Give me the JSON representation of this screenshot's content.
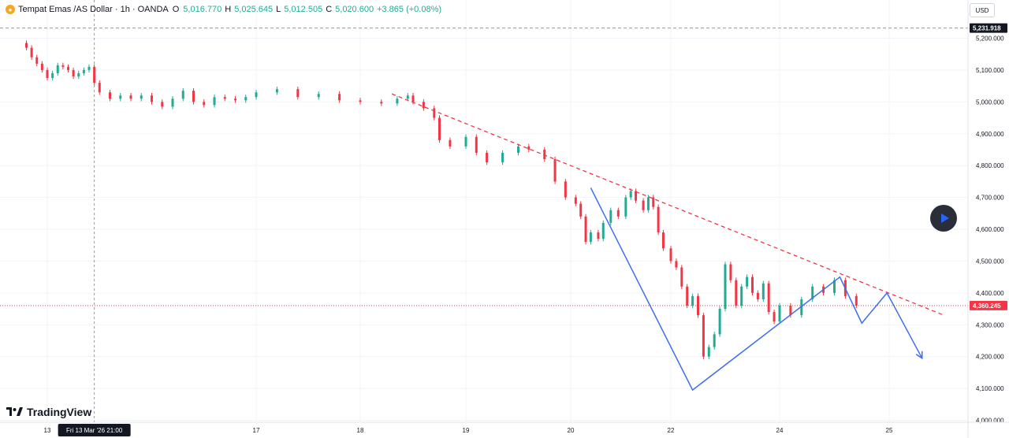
{
  "legend": {
    "symbol": "Tempat Emas /AS Dollar · 1h · OANDA",
    "o_label": "O",
    "o_value": "5,016.770",
    "h_label": "H",
    "h_value": "5,025.645",
    "l_label": "L",
    "l_value": "5,012.505",
    "c_label": "C",
    "c_value": "5,020.600",
    "change": "+3.865 (+0.08%)"
  },
  "currency": "USD",
  "logo_text": "TradingView",
  "colors": {
    "up": "#22ab94",
    "down": "#f23645",
    "projection": "#3d6ef2",
    "trendline": "#f23645"
  },
  "chart_data": {
    "type": "candlestick",
    "y_axis": {
      "min": 4000,
      "max": 5231.918,
      "ticks": [
        "5,200.000",
        "5,100.000",
        "5,000.000",
        "4,900.000",
        "4,800.000",
        "4,700.000",
        "4,600.000",
        "4,500.000",
        "4,400.000",
        "4,300.000",
        "4,200.000",
        "4,100.000",
        "4,000.000"
      ],
      "tick_values": [
        5200,
        5100,
        5000,
        4900,
        4800,
        4700,
        4600,
        4500,
        4400,
        4300,
        4200,
        4100,
        4000
      ]
    },
    "x_axis": {
      "ticks": [
        "13",
        "17",
        "18",
        "19",
        "20",
        "22",
        "24",
        "25"
      ],
      "tick_days": [
        13,
        17,
        18,
        19,
        20,
        22,
        24,
        25
      ],
      "crosshair_label": "Fri 13 Mar '26   21:00",
      "crosshair_day": 13.9
    },
    "price_lines": [
      {
        "label": "5,231.918",
        "value": 5231.918,
        "style": "dashed-gray"
      },
      {
        "label": "4,360.245",
        "value": 4360.245,
        "style": "dotted-red"
      }
    ],
    "candles": [
      {
        "d": 12.6,
        "o": 5185,
        "c": 5170
      },
      {
        "d": 12.7,
        "o": 5170,
        "c": 5140
      },
      {
        "d": 12.8,
        "o": 5140,
        "c": 5120
      },
      {
        "d": 12.9,
        "o": 5120,
        "c": 5100
      },
      {
        "d": 13.0,
        "o": 5100,
        "c": 5075
      },
      {
        "d": 13.1,
        "o": 5075,
        "c": 5090
      },
      {
        "d": 13.2,
        "o": 5090,
        "c": 5115
      },
      {
        "d": 13.3,
        "o": 5115,
        "c": 5110
      },
      {
        "d": 13.4,
        "o": 5110,
        "c": 5100
      },
      {
        "d": 13.5,
        "o": 5100,
        "c": 5080
      },
      {
        "d": 13.6,
        "o": 5080,
        "c": 5090
      },
      {
        "d": 13.7,
        "o": 5090,
        "c": 5100
      },
      {
        "d": 13.8,
        "o": 5100,
        "c": 5110
      },
      {
        "d": 13.9,
        "o": 5110,
        "c": 5060
      },
      {
        "d": 14.0,
        "o": 5060,
        "c": 5030
      },
      {
        "d": 14.2,
        "o": 5030,
        "c": 5010
      },
      {
        "d": 14.4,
        "o": 5010,
        "c": 5020
      },
      {
        "d": 14.6,
        "o": 5020,
        "c": 5010
      },
      {
        "d": 14.8,
        "o": 5010,
        "c": 5020
      },
      {
        "d": 15.0,
        "o": 5020,
        "c": 5000
      },
      {
        "d": 15.2,
        "o": 5000,
        "c": 4985
      },
      {
        "d": 15.4,
        "o": 4985,
        "c": 5010
      },
      {
        "d": 15.6,
        "o": 5010,
        "c": 5035
      },
      {
        "d": 15.8,
        "o": 5035,
        "c": 5000
      },
      {
        "d": 16.0,
        "o": 5000,
        "c": 4990
      },
      {
        "d": 16.2,
        "o": 4990,
        "c": 5015
      },
      {
        "d": 16.4,
        "o": 5015,
        "c": 5010
      },
      {
        "d": 16.6,
        "o": 5010,
        "c": 5005
      },
      {
        "d": 16.8,
        "o": 5005,
        "c": 5015
      },
      {
        "d": 17.0,
        "o": 5015,
        "c": 5030
      },
      {
        "d": 17.2,
        "o": 5030,
        "c": 5040
      },
      {
        "d": 17.4,
        "o": 5040,
        "c": 5015
      },
      {
        "d": 17.6,
        "o": 5015,
        "c": 5025
      },
      {
        "d": 17.8,
        "o": 5025,
        "c": 5005
      },
      {
        "d": 18.0,
        "o": 5005,
        "c": 5000
      },
      {
        "d": 18.2,
        "o": 5000,
        "c": 4995
      },
      {
        "d": 18.35,
        "o": 4995,
        "c": 5010
      },
      {
        "d": 18.45,
        "o": 5010,
        "c": 5020
      },
      {
        "d": 18.5,
        "o": 5020,
        "c": 5000
      },
      {
        "d": 18.6,
        "o": 5000,
        "c": 4980
      },
      {
        "d": 18.7,
        "o": 4980,
        "c": 4950
      },
      {
        "d": 18.75,
        "o": 4950,
        "c": 4880
      },
      {
        "d": 18.85,
        "o": 4880,
        "c": 4860
      },
      {
        "d": 19.0,
        "o": 4860,
        "c": 4890
      },
      {
        "d": 19.1,
        "o": 4890,
        "c": 4840
      },
      {
        "d": 19.2,
        "o": 4840,
        "c": 4810
      },
      {
        "d": 19.35,
        "o": 4810,
        "c": 4840
      },
      {
        "d": 19.5,
        "o": 4840,
        "c": 4860
      },
      {
        "d": 19.6,
        "o": 4860,
        "c": 4850
      },
      {
        "d": 19.75,
        "o": 4850,
        "c": 4820
      },
      {
        "d": 19.85,
        "o": 4820,
        "c": 4750
      },
      {
        "d": 19.95,
        "o": 4750,
        "c": 4700
      },
      {
        "d": 20.1,
        "o": 4700,
        "c": 4680
      },
      {
        "d": 20.2,
        "o": 4680,
        "c": 4640
      },
      {
        "d": 20.3,
        "o": 4640,
        "c": 4560
      },
      {
        "d": 20.4,
        "o": 4560,
        "c": 4590
      },
      {
        "d": 20.55,
        "o": 4590,
        "c": 4570
      },
      {
        "d": 20.65,
        "o": 4570,
        "c": 4620
      },
      {
        "d": 20.8,
        "o": 4620,
        "c": 4660
      },
      {
        "d": 20.95,
        "o": 4660,
        "c": 4640
      },
      {
        "d": 21.1,
        "o": 4640,
        "c": 4700
      },
      {
        "d": 21.2,
        "o": 4700,
        "c": 4720
      },
      {
        "d": 21.3,
        "o": 4720,
        "c": 4690
      },
      {
        "d": 21.45,
        "o": 4690,
        "c": 4660
      },
      {
        "d": 21.55,
        "o": 4660,
        "c": 4700
      },
      {
        "d": 21.65,
        "o": 4700,
        "c": 4670
      },
      {
        "d": 21.75,
        "o": 4670,
        "c": 4590
      },
      {
        "d": 21.85,
        "o": 4590,
        "c": 4540
      },
      {
        "d": 22.0,
        "o": 4540,
        "c": 4500
      },
      {
        "d": 22.1,
        "o": 4500,
        "c": 4480
      },
      {
        "d": 22.2,
        "o": 4480,
        "c": 4420
      },
      {
        "d": 22.3,
        "o": 4420,
        "c": 4360
      },
      {
        "d": 22.4,
        "o": 4360,
        "c": 4390
      },
      {
        "d": 22.5,
        "o": 4390,
        "c": 4330
      },
      {
        "d": 22.6,
        "o": 4330,
        "c": 4200
      },
      {
        "d": 22.7,
        "o": 4200,
        "c": 4230
      },
      {
        "d": 22.8,
        "o": 4230,
        "c": 4270
      },
      {
        "d": 22.9,
        "o": 4270,
        "c": 4350
      },
      {
        "d": 23.0,
        "o": 4350,
        "c": 4490
      },
      {
        "d": 23.1,
        "o": 4490,
        "c": 4440
      },
      {
        "d": 23.2,
        "o": 4440,
        "c": 4360
      },
      {
        "d": 23.3,
        "o": 4360,
        "c": 4420
      },
      {
        "d": 23.4,
        "o": 4420,
        "c": 4450
      },
      {
        "d": 23.5,
        "o": 4450,
        "c": 4400
      },
      {
        "d": 23.6,
        "o": 4400,
        "c": 4380
      },
      {
        "d": 23.7,
        "o": 4380,
        "c": 4430
      },
      {
        "d": 23.8,
        "o": 4430,
        "c": 4340
      },
      {
        "d": 23.9,
        "o": 4340,
        "c": 4310
      },
      {
        "d": 24.0,
        "o": 4310,
        "c": 4360
      },
      {
        "d": 24.1,
        "o": 4360,
        "c": 4330
      },
      {
        "d": 24.2,
        "o": 4330,
        "c": 4380
      },
      {
        "d": 24.3,
        "o": 4380,
        "c": 4420
      },
      {
        "d": 24.4,
        "o": 4420,
        "c": 4400
      },
      {
        "d": 24.5,
        "o": 4400,
        "c": 4440
      },
      {
        "d": 24.6,
        "o": 4440,
        "c": 4390
      },
      {
        "d": 24.7,
        "o": 4390,
        "c": 4360
      }
    ],
    "trendline": {
      "from": {
        "d": 18.3,
        "v": 5025
      },
      "to": {
        "d": 25.5,
        "v": 4330
      },
      "style": "dashed-red"
    },
    "projection": [
      {
        "d": 20.4,
        "v": 4730
      },
      {
        "d": 22.4,
        "v": 4095
      },
      {
        "d": 24.55,
        "v": 4450
      },
      {
        "d": 24.75,
        "v": 4305
      },
      {
        "d": 24.98,
        "v": 4400
      },
      {
        "d": 25.3,
        "v": 4195
      }
    ]
  }
}
